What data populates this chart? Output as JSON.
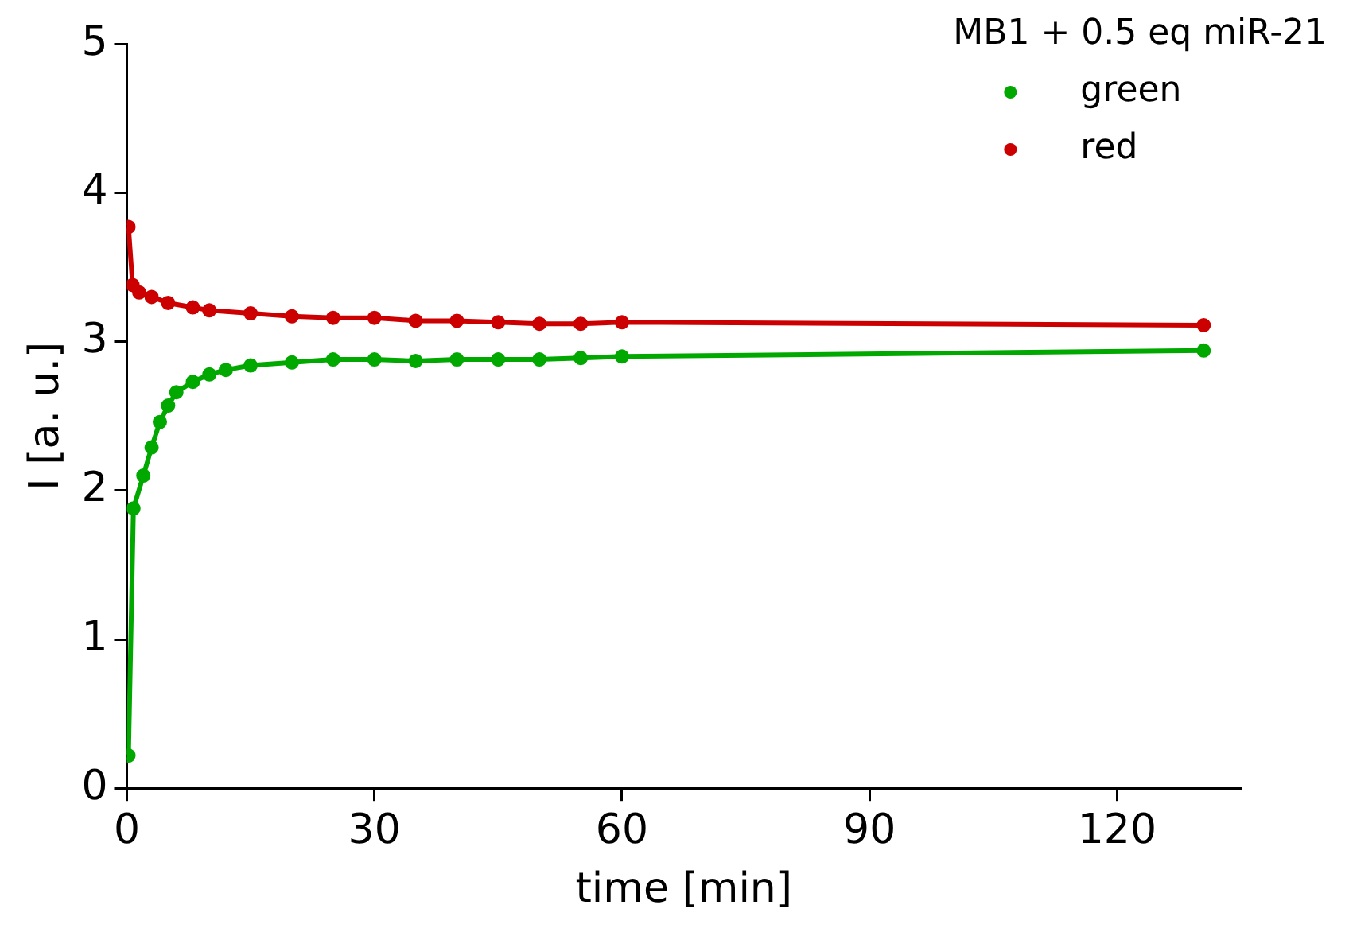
{
  "chart_data": {
    "type": "line",
    "xlabel": "time [min]",
    "ylabel": "I [a. u.]",
    "legend_title": "MB1 + 0.5 eq miR-21",
    "legend": "top right",
    "marker": "circle",
    "grid": false,
    "xlim": [
      0,
      135
    ],
    "xticks": [
      0,
      30,
      60,
      90,
      120
    ],
    "ylim": [
      0,
      5
    ],
    "yticks": [
      0,
      1,
      2,
      3,
      4,
      5
    ],
    "series": [
      {
        "name": "green",
        "color": "#00a800",
        "x": [
          0.2,
          0.8,
          2,
          3,
          4,
          5,
          6,
          8,
          10,
          12,
          15,
          20,
          25,
          30,
          35,
          40,
          45,
          50,
          55,
          60,
          130.5
        ],
        "values": [
          0.22,
          1.88,
          2.1,
          2.29,
          2.46,
          2.57,
          2.66,
          2.73,
          2.78,
          2.81,
          2.84,
          2.86,
          2.88,
          2.88,
          2.87,
          2.88,
          2.88,
          2.88,
          2.89,
          2.9,
          2.94
        ]
      },
      {
        "name": "red",
        "color": "#cc0000",
        "x": [
          0.2,
          0.7,
          1.5,
          3,
          5,
          8,
          10,
          15,
          20,
          25,
          30,
          35,
          40,
          45,
          50,
          55,
          60,
          130.5
        ],
        "values": [
          3.77,
          3.38,
          3.33,
          3.3,
          3.26,
          3.23,
          3.21,
          3.19,
          3.17,
          3.16,
          3.16,
          3.14,
          3.14,
          3.13,
          3.12,
          3.12,
          3.13,
          3.11
        ]
      }
    ]
  }
}
